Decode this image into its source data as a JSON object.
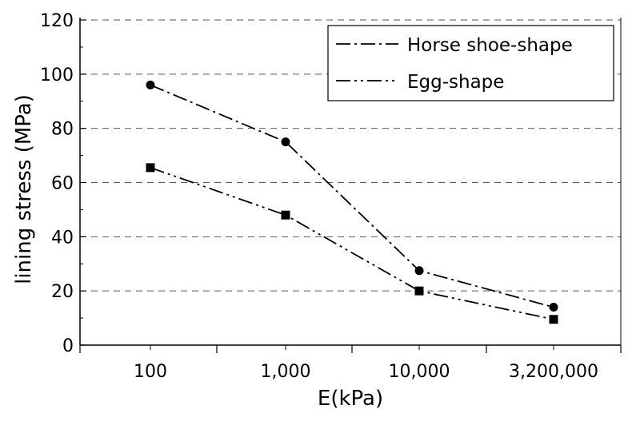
{
  "chart_data": {
    "type": "line",
    "categories": [
      "100",
      "1,000",
      "10,000",
      "3,200,000"
    ],
    "series": [
      {
        "name": "Horse shoe-shape",
        "values": [
          96,
          75,
          27.5,
          14
        ],
        "marker": "circle",
        "line_style": "dash-dot"
      },
      {
        "name": "Egg-shape",
        "values": [
          65.5,
          48,
          20,
          9.5
        ],
        "marker": "square",
        "line_style": "dash-dot-dot"
      }
    ],
    "xlabel": "E(kPa)",
    "ylabel": "lining stress (MPa)",
    "ylim": [
      0,
      120
    ],
    "yticks": [
      "0",
      "20",
      "40",
      "60",
      "80",
      "100",
      "120"
    ],
    "grid": "horizontal dashed",
    "legend_position": "top-right",
    "colors": {
      "line": "#000000",
      "grid": "#555555",
      "background": "#ffffff"
    }
  }
}
